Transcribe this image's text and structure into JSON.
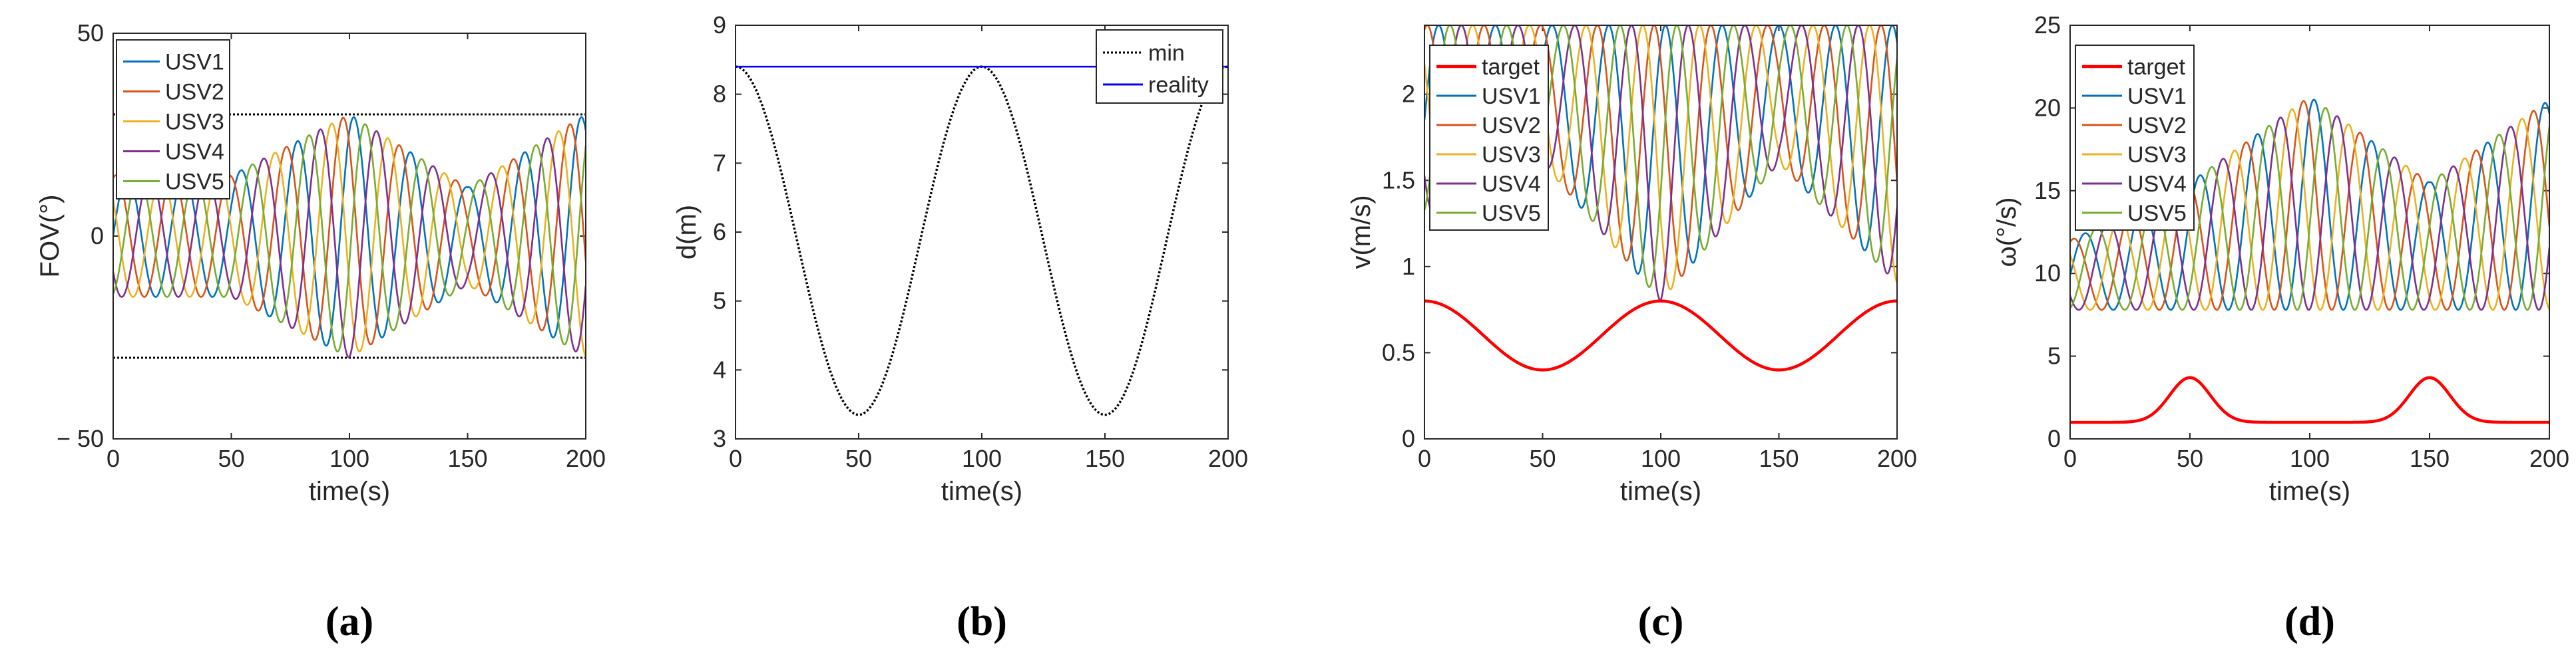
{
  "chart_data": [
    {
      "panel": "(a)",
      "type": "line",
      "xlabel": "time(s)",
      "ylabel": "FOV(°)",
      "xlim": [
        0,
        200
      ],
      "ylim": [
        -50,
        50
      ],
      "xticks": [
        0,
        50,
        100,
        150,
        200
      ],
      "yticks": [
        -50,
        0,
        50
      ],
      "ytick_labels": [
        "− 50",
        "0",
        "50"
      ],
      "legend": [
        "USV1",
        "USV2",
        "USV3",
        "USV4",
        "USV5"
      ],
      "legend_position": "top-left",
      "series": [
        {
          "name": "USV1",
          "color": "#0072BD",
          "kind": "oscillation",
          "period": 24,
          "phase": 0,
          "amp_points": [
            [
              0,
              15
            ],
            [
              50,
              15
            ],
            [
              100,
              30
            ],
            [
              150,
              12
            ],
            [
              200,
              30
            ]
          ],
          "center": 0
        },
        {
          "name": "USV2",
          "color": "#D95319",
          "kind": "oscillation",
          "period": 24,
          "phase": 4.8,
          "amp_points": [
            [
              0,
              15
            ],
            [
              50,
              15
            ],
            [
              100,
              30
            ],
            [
              150,
              12
            ],
            [
              200,
              30
            ]
          ],
          "center": 0
        },
        {
          "name": "USV3",
          "color": "#EDB120",
          "kind": "oscillation",
          "period": 24,
          "phase": 9.6,
          "amp_points": [
            [
              0,
              15
            ],
            [
              50,
              15
            ],
            [
              100,
              30
            ],
            [
              150,
              12
            ],
            [
              200,
              30
            ]
          ],
          "center": 0
        },
        {
          "name": "USV4",
          "color": "#7E2F8E",
          "kind": "oscillation",
          "period": 24,
          "phase": 14.4,
          "amp_points": [
            [
              0,
              15
            ],
            [
              50,
              15
            ],
            [
              100,
              30
            ],
            [
              150,
              12
            ],
            [
              200,
              30
            ]
          ],
          "center": 0
        },
        {
          "name": "USV5",
          "color": "#77AC30",
          "kind": "oscillation",
          "period": 24,
          "phase": 19.2,
          "amp_points": [
            [
              0,
              15
            ],
            [
              50,
              15
            ],
            [
              100,
              30
            ],
            [
              150,
              12
            ],
            [
              200,
              30
            ]
          ],
          "center": 0
        }
      ],
      "reference_lines": [
        {
          "y": 30,
          "style": "dotted",
          "color": "#000000"
        },
        {
          "y": -30,
          "style": "dotted",
          "color": "#000000"
        }
      ]
    },
    {
      "panel": "(b)",
      "type": "line",
      "xlabel": "time(s)",
      "ylabel": "d(m)",
      "xlim": [
        0,
        200
      ],
      "ylim": [
        3,
        9
      ],
      "xticks": [
        0,
        50,
        100,
        150,
        200
      ],
      "yticks": [
        3,
        4,
        5,
        6,
        7,
        8,
        9
      ],
      "legend": [
        "min",
        "reality"
      ],
      "legend_position": "top-right",
      "series": [
        {
          "name": "min",
          "color": "#000000",
          "style": "dotted",
          "kind": "cosine",
          "mean": 5.875,
          "amplitude": 2.525,
          "period": 100,
          "x_peak": 0
        },
        {
          "name": "reality",
          "color": "#0000FF",
          "style": "solid",
          "kind": "constant",
          "value": 8.4
        }
      ]
    },
    {
      "panel": "(c)",
      "type": "line",
      "xlabel": "time(s)",
      "ylabel": "v(m/s)",
      "xlim": [
        0,
        200
      ],
      "ylim": [
        0,
        2.4
      ],
      "xticks": [
        0,
        50,
        100,
        150,
        200
      ],
      "yticks": [
        0,
        0.5,
        1,
        1.5,
        2
      ],
      "legend": [
        "target",
        "USV1",
        "USV2",
        "USV3",
        "USV4",
        "USV5"
      ],
      "legend_position": "top-left",
      "series": [
        {
          "name": "target",
          "color": "#FF0000",
          "kind": "cosine",
          "mean": 0.6,
          "amplitude": 0.2,
          "period": 100,
          "x_peak": 0
        },
        {
          "name": "USV1",
          "color": "#0072BD",
          "kind": "band",
          "period": 24,
          "phase": 0,
          "upper": 2.4,
          "lower_points": [
            [
              0,
              1.3
            ],
            [
              50,
              1.6
            ],
            [
              100,
              0.8
            ],
            [
              150,
              1.6
            ],
            [
              200,
              0.9
            ]
          ]
        },
        {
          "name": "USV2",
          "color": "#D95319",
          "kind": "band",
          "period": 24,
          "phase": 4.8,
          "upper": 2.4,
          "lower_points": [
            [
              0,
              1.3
            ],
            [
              50,
              1.6
            ],
            [
              100,
              0.8
            ],
            [
              150,
              1.6
            ],
            [
              200,
              0.9
            ]
          ]
        },
        {
          "name": "USV3",
          "color": "#EDB120",
          "kind": "band",
          "period": 24,
          "phase": 9.6,
          "upper": 2.4,
          "lower_points": [
            [
              0,
              1.3
            ],
            [
              50,
              1.6
            ],
            [
              100,
              0.8
            ],
            [
              150,
              1.6
            ],
            [
              200,
              0.9
            ]
          ]
        },
        {
          "name": "USV4",
          "color": "#7E2F8E",
          "kind": "band",
          "period": 24,
          "phase": 14.4,
          "upper": 2.4,
          "lower_points": [
            [
              0,
              1.3
            ],
            [
              50,
              1.6
            ],
            [
              100,
              0.8
            ],
            [
              150,
              1.6
            ],
            [
              200,
              0.9
            ]
          ]
        },
        {
          "name": "USV5",
          "color": "#77AC30",
          "kind": "band",
          "period": 24,
          "phase": 19.2,
          "upper": 2.4,
          "lower_points": [
            [
              0,
              1.3
            ],
            [
              50,
              1.6
            ],
            [
              100,
              0.8
            ],
            [
              150,
              1.6
            ],
            [
              200,
              0.9
            ]
          ]
        }
      ]
    },
    {
      "panel": "(d)",
      "type": "line",
      "xlabel": "time(s)",
      "ylabel": "ω(°/s)",
      "xlim": [
        0,
        200
      ],
      "ylim": [
        0,
        25
      ],
      "xticks": [
        0,
        50,
        100,
        150,
        200
      ],
      "yticks": [
        0,
        5,
        10,
        15,
        20,
        25
      ],
      "legend": [
        "target",
        "USV1",
        "USV2",
        "USV3",
        "USV4",
        "USV5"
      ],
      "legend_position": "top-left",
      "series": [
        {
          "name": "target",
          "color": "#FF0000",
          "kind": "bumps",
          "base": 1.0,
          "height": 2.7,
          "centers": [
            50,
            150
          ],
          "width": 12
        },
        {
          "name": "USV1",
          "color": "#0072BD",
          "kind": "band",
          "period": 24,
          "phase": 0,
          "lower": 7.8,
          "upper_points": [
            [
              0,
              12
            ],
            [
              50,
              15.5
            ],
            [
              100,
              20.7
            ],
            [
              150,
              15.5
            ],
            [
              200,
              20.5
            ]
          ]
        },
        {
          "name": "USV2",
          "color": "#D95319",
          "kind": "band",
          "period": 24,
          "phase": 4.8,
          "lower": 7.8,
          "upper_points": [
            [
              0,
              12
            ],
            [
              50,
              15.5
            ],
            [
              100,
              20.7
            ],
            [
              150,
              15.5
            ],
            [
              200,
              20.5
            ]
          ]
        },
        {
          "name": "USV3",
          "color": "#EDB120",
          "kind": "band",
          "period": 24,
          "phase": 9.6,
          "lower": 7.8,
          "upper_points": [
            [
              0,
              12
            ],
            [
              50,
              15.5
            ],
            [
              100,
              20.7
            ],
            [
              150,
              15.5
            ],
            [
              200,
              20.5
            ]
          ]
        },
        {
          "name": "USV4",
          "color": "#7E2F8E",
          "kind": "band",
          "period": 24,
          "phase": 14.4,
          "lower": 7.8,
          "upper_points": [
            [
              0,
              12
            ],
            [
              50,
              15.5
            ],
            [
              100,
              20.7
            ],
            [
              150,
              15.5
            ],
            [
              200,
              20.5
            ]
          ]
        },
        {
          "name": "USV5",
          "color": "#77AC30",
          "kind": "band",
          "period": 24,
          "phase": 19.2,
          "lower": 7.8,
          "upper_points": [
            [
              0,
              12
            ],
            [
              50,
              15.5
            ],
            [
              100,
              20.7
            ],
            [
              150,
              15.5
            ],
            [
              200,
              20.5
            ]
          ]
        }
      ]
    }
  ]
}
